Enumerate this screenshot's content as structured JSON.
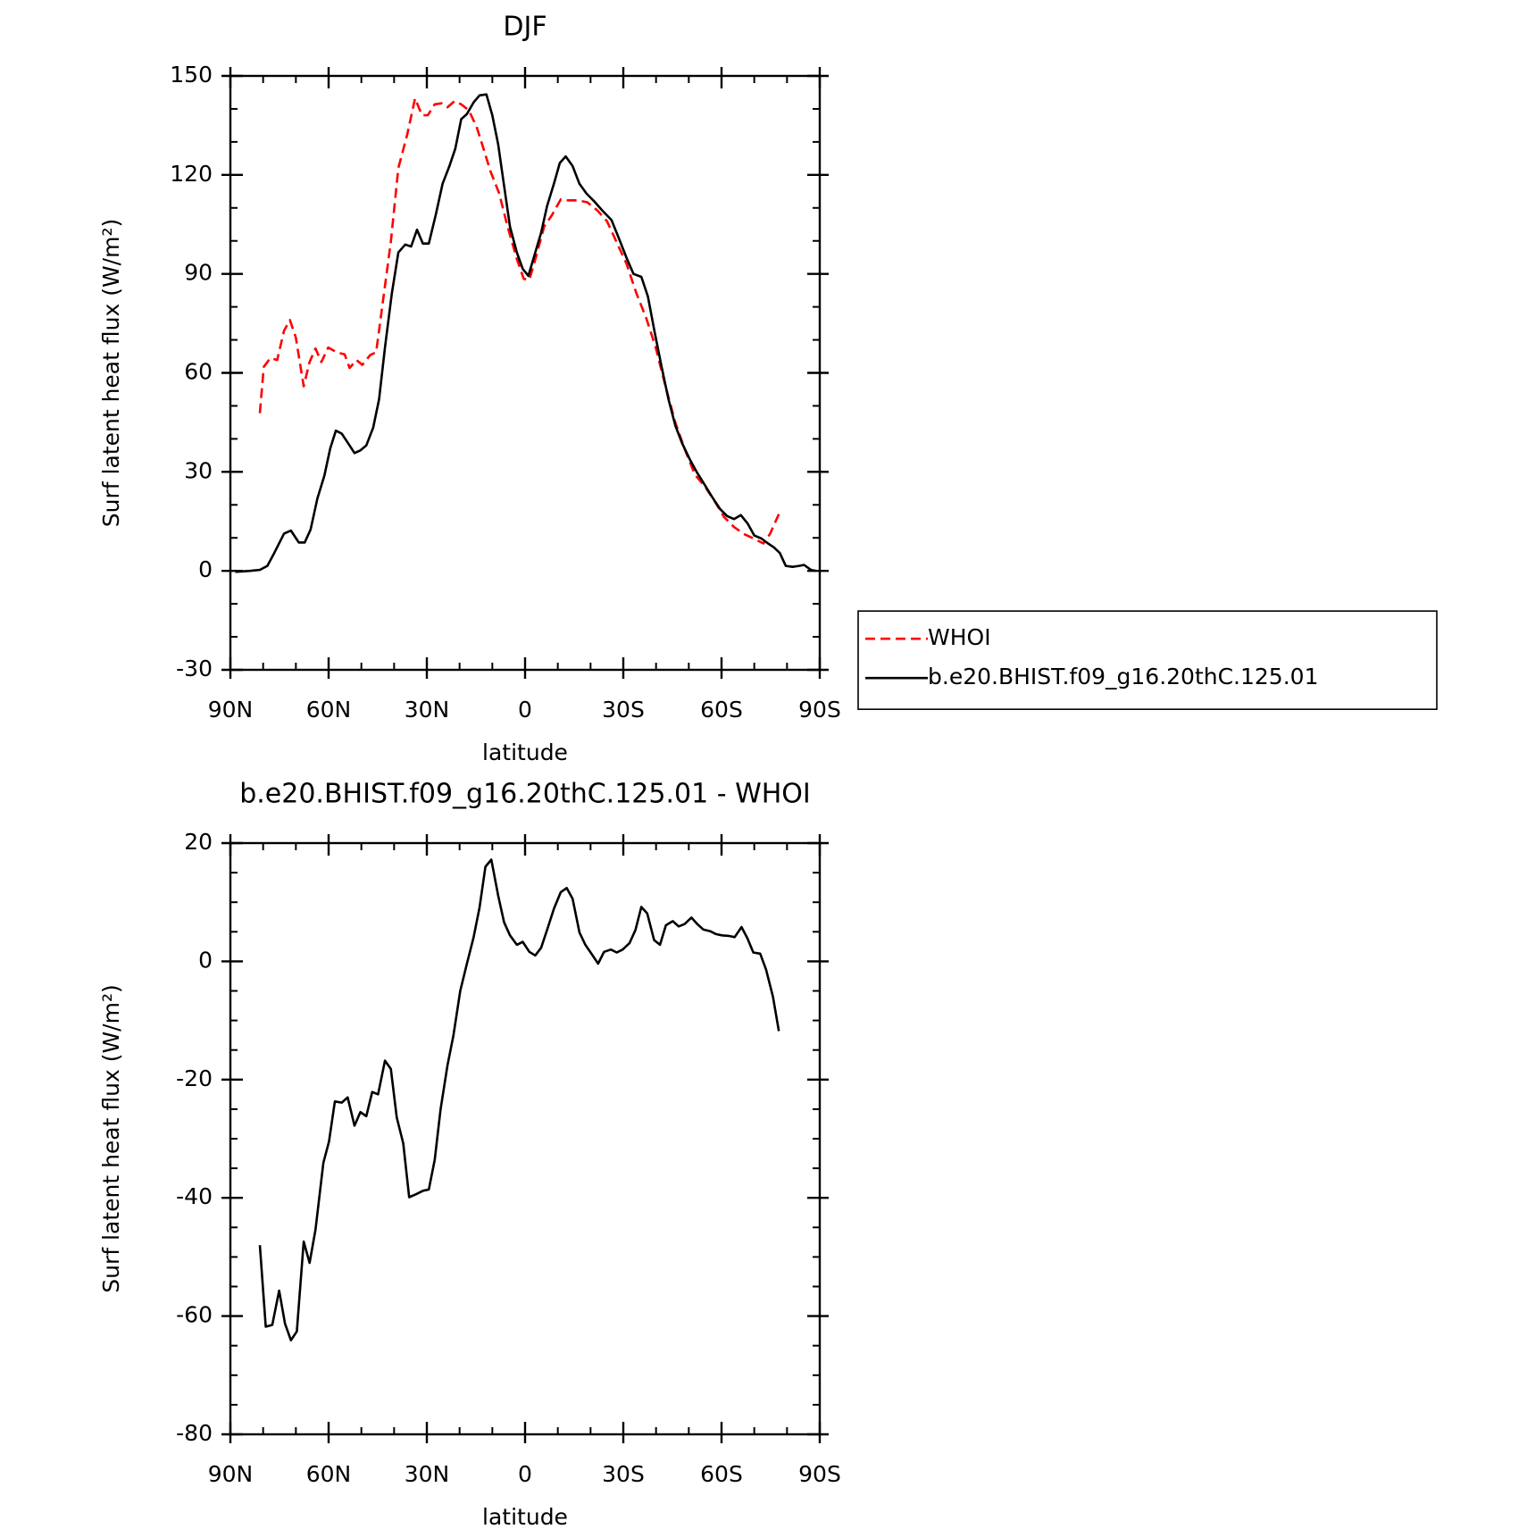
{
  "chart_data": [
    {
      "type": "line",
      "title": "DJF",
      "xlabel": "latitude",
      "ylabel": "Surf latent heat flux (W/m²)",
      "xlim": [
        90,
        -90
      ],
      "xticks": [
        {
          "value": 90,
          "label": "90N"
        },
        {
          "value": 60,
          "label": "60N"
        },
        {
          "value": 30,
          "label": "30N"
        },
        0,
        {
          "value": -30,
          "label": "30S"
        },
        {
          "value": -60,
          "label": "60S"
        },
        {
          "value": -90,
          "label": "90S"
        }
      ],
      "ylim": [
        -30,
        150
      ],
      "yticks": [
        -30,
        0,
        30,
        60,
        90,
        120,
        150
      ],
      "legend": "right",
      "series": [
        {
          "name": "WHOI",
          "color": "#ff0000",
          "linestyle": "dashed",
          "x": [
            81.0,
            79.8,
            77.8,
            75.7,
            73.6,
            71.8,
            70.0,
            67.6,
            65.8,
            64.0,
            62.2,
            60.1,
            57.5,
            55.1,
            53.6,
            51.5,
            49.7,
            47.3,
            45.5,
            43.1,
            41.0,
            38.7,
            36.0,
            33.6,
            31.5,
            29.7,
            27.6,
            25.5,
            23.7,
            21.6,
            19.5,
            17.2,
            14.8,
            12.7,
            10.6,
            7.9,
            5.5,
            2.5,
            0.4,
            -1.3,
            -3.4,
            -5.8,
            -8.2,
            -10.9,
            -13.0,
            -16.0,
            -19.0,
            -22.0,
            -25.0,
            -28.0,
            -31.0,
            -34.0,
            -37.0,
            -39.9,
            -42.9,
            -45.9,
            -48.9,
            -51.9,
            -54.9,
            -57.9,
            -60.8,
            -63.8,
            -66.8,
            -69.8,
            -72.8,
            -74.8,
            -77.5
          ],
          "values": [
            47.8,
            61.8,
            64.5,
            63.9,
            72.8,
            76.0,
            70.7,
            55.9,
            63.3,
            67.4,
            63.3,
            67.7,
            66.2,
            65.6,
            61.5,
            63.9,
            62.4,
            65.4,
            66.2,
            84.1,
            99.8,
            122.1,
            132.2,
            143.2,
            138.1,
            138.1,
            141.4,
            141.7,
            140.5,
            142.3,
            141.4,
            139.6,
            134.6,
            128.0,
            121.2,
            114.4,
            104.9,
            94.5,
            88.5,
            88.2,
            95.4,
            104.3,
            107.8,
            112.6,
            112.3,
            112.3,
            111.7,
            109.3,
            106.0,
            99.5,
            93.0,
            84.1,
            76.6,
            67.7,
            55.9,
            44.9,
            36.5,
            29.1,
            25.6,
            21.1,
            16.3,
            13.3,
            11.2,
            9.8,
            8.3,
            11.2,
            17.2
          ]
        },
        {
          "name": "b.e20.BHIST.f09_g16.20thC.125.01",
          "color": "#000000",
          "linestyle": "solid",
          "x": [
            88.5,
            84.0,
            81.0,
            78.7,
            76.6,
            73.6,
            71.5,
            69.1,
            67.3,
            65.5,
            63.4,
            61.3,
            59.5,
            57.8,
            56.0,
            53.6,
            52.1,
            50.3,
            48.5,
            46.4,
            44.6,
            42.8,
            40.7,
            38.7,
            36.6,
            34.8,
            33.0,
            31.2,
            29.4,
            27.3,
            25.2,
            23.1,
            21.3,
            19.5,
            17.8,
            15.7,
            13.9,
            11.8,
            10.0,
            8.2,
            6.4,
            4.6,
            2.5,
            0.7,
            -1.0,
            -3.1,
            -4.9,
            -6.7,
            -8.8,
            -10.6,
            -12.4,
            -14.5,
            -16.6,
            -18.7,
            -21.1,
            -23.5,
            -26.4,
            -28.8,
            -31.0,
            -33.1,
            -35.5,
            -37.5,
            -39.6,
            -41.7,
            -43.8,
            -45.9,
            -48.0,
            -50.4,
            -52.4,
            -54.8,
            -57.2,
            -59.6,
            -61.7,
            -63.8,
            -65.9,
            -68.0,
            -70.0,
            -72.2,
            -74.2,
            -76.0,
            -77.8,
            -79.6,
            -81.7,
            -83.7,
            -85.2,
            -87.3,
            -88.8
          ],
          "values": [
            -0.3,
            0,
            0.3,
            1.5,
            5.4,
            11.3,
            12.2,
            8.6,
            8.6,
            12.5,
            22.0,
            28.8,
            37.1,
            42.5,
            41.6,
            38.0,
            35.7,
            36.5,
            38.0,
            43.4,
            52.0,
            67.7,
            84.1,
            96.5,
            98.9,
            98.3,
            103.4,
            99.2,
            99.2,
            107.8,
            117.3,
            122.7,
            128.0,
            136.9,
            138.4,
            142.0,
            144.1,
            144.4,
            138.1,
            129.2,
            116.7,
            104.3,
            96.5,
            91.5,
            89.4,
            96.5,
            102.5,
            110.5,
            117.3,
            123.6,
            125.6,
            122.7,
            117.3,
            114.4,
            112.0,
            109.3,
            106.3,
            100.4,
            94.8,
            90.0,
            89.1,
            83.2,
            72.2,
            61.8,
            52.0,
            44.0,
            38.6,
            33.6,
            30.0,
            26.2,
            22.3,
            18.7,
            16.6,
            15.7,
            16.9,
            14.3,
            10.7,
            9.8,
            8.3,
            7.1,
            5.4,
            1.5,
            1.2,
            1.5,
            1.8,
            0.3,
            0
          ]
        }
      ]
    },
    {
      "type": "line",
      "title": "b.e20.BHIST.f09_g16.20thC.125.01 - WHOI",
      "xlabel": "latitude",
      "ylabel": "Surf latent heat flux (W/m²)",
      "xlim": [
        90,
        -90
      ],
      "xticks": [
        {
          "value": 90,
          "label": "90N"
        },
        {
          "value": 60,
          "label": "60N"
        },
        {
          "value": 30,
          "label": "30N"
        },
        0,
        {
          "value": -30,
          "label": "30S"
        },
        {
          "value": -60,
          "label": "60S"
        },
        {
          "value": -90,
          "label": "90S"
        }
      ],
      "ylim": [
        -80,
        20
      ],
      "yticks": [
        -80,
        -60,
        -40,
        -20,
        0,
        20
      ],
      "series": [
        {
          "color": "#000000",
          "linestyle": "solid",
          "x": [
            81.0,
            79.2,
            77.2,
            75.1,
            73.3,
            71.5,
            69.7,
            67.6,
            65.8,
            64.0,
            61.6,
            59.9,
            58.1,
            56.0,
            54.2,
            52.1,
            50.3,
            48.5,
            46.7,
            44.9,
            42.8,
            41.0,
            39.2,
            37.2,
            35.4,
            33.3,
            31.2,
            29.4,
            27.6,
            25.8,
            23.7,
            21.9,
            19.8,
            17.8,
            15.7,
            13.9,
            12.1,
            10.3,
            8.2,
            6.4,
            4.6,
            2.5,
            0.7,
            -1.3,
            -3.1,
            -4.9,
            -7.0,
            -8.8,
            -10.9,
            -12.7,
            -14.5,
            -16.6,
            -18.4,
            -20.5,
            -22.3,
            -24.1,
            -26.2,
            -28.0,
            -29.8,
            -31.9,
            -33.7,
            -35.5,
            -37.3,
            -39.4,
            -41.2,
            -43.0,
            -45.1,
            -46.9,
            -48.7,
            -50.8,
            -52.6,
            -54.4,
            -56.5,
            -58.3,
            -60.1,
            -62.2,
            -64.0,
            -66.1,
            -67.9,
            -69.7,
            -71.8,
            -73.6,
            -75.7,
            -77.5
          ],
          "values": [
            -48.0,
            -61.8,
            -61.5,
            -55.7,
            -61.3,
            -64.1,
            -62.6,
            -47.4,
            -51.0,
            -45.4,
            -34.1,
            -30.5,
            -23.7,
            -23.9,
            -23.0,
            -27.8,
            -25.5,
            -26.2,
            -22.1,
            -22.5,
            -16.8,
            -18.2,
            -26.4,
            -30.8,
            -39.9,
            -39.4,
            -38.8,
            -38.6,
            -33.6,
            -25.0,
            -17.6,
            -12.6,
            -5.0,
            -0.5,
            4.1,
            9.1,
            16.0,
            17.2,
            11.1,
            6.6,
            4.4,
            2.8,
            3.3,
            1.6,
            1.0,
            2.3,
            5.8,
            8.9,
            11.7,
            12.4,
            10.6,
            4.9,
            2.8,
            1.1,
            -0.4,
            1.6,
            2.0,
            1.5,
            2.0,
            3.1,
            5.3,
            9.2,
            8.1,
            3.6,
            2.8,
            6.1,
            6.8,
            5.9,
            6.3,
            7.4,
            6.3,
            5.4,
            5.1,
            4.6,
            4.4,
            4.3,
            4.1,
            5.8,
            3.9,
            1.5,
            1.3,
            -1.4,
            -6.0,
            -11.8
          ]
        }
      ]
    }
  ]
}
